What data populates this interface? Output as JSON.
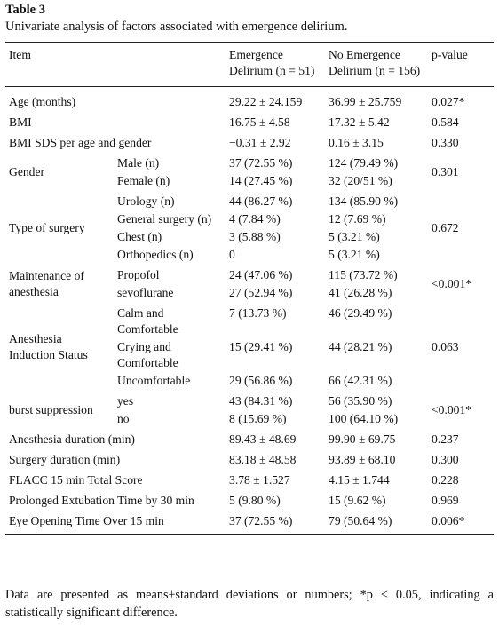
{
  "title": "Table 3",
  "caption": "Univariate analysis of factors associated with emergence delirium.",
  "table": {
    "header": [
      "Item",
      "Emergence Delirium (n = 51)",
      "No Emergence Delirium (n = 156)",
      "p-value"
    ],
    "rows": [
      {
        "item": "Age (months)",
        "ed": "29.22 ± 24.159",
        "no_ed": "36.99 ± 25.759",
        "p": "0.027*"
      },
      {
        "item": "BMI",
        "ed": "16.75 ± 4.58",
        "no_ed": "17.32 ± 5.42",
        "p": "0.584"
      },
      {
        "item": "BMI SDS per age and gender",
        "ed": "−0.31 ± 2.92",
        "no_ed": "0.16 ± 3.15",
        "p": "0.330"
      },
      {
        "item": "Gender",
        "rows": [
          {
            "label": "Male (n)",
            "ed": "37 (72.55 %)",
            "no_ed": "124 (79.49 %)"
          },
          {
            "label": "Female (n)",
            "ed": "14 (27.45 %)",
            "no_ed": "32 (20/51 %)"
          }
        ],
        "p": "0.301"
      },
      {
        "item": "Type of surgery",
        "rows": [
          {
            "label": "Urology (n)",
            "ed": "44 (86.27 %)",
            "no_ed": "134 (85.90 %)"
          },
          {
            "label": "General surgery (n)",
            "ed": "4 (7.84 %)",
            "no_ed": "12 (7.69 %)"
          },
          {
            "label": "Chest (n)",
            "ed": "3 (5.88 %)",
            "no_ed": "5 (3.21 %)"
          },
          {
            "label": "Orthopedics (n)",
            "ed": "0",
            "no_ed": "5 (3.21 %)"
          }
        ],
        "p": "0.672"
      },
      {
        "item": "Maintenance of anesthesia",
        "rows": [
          {
            "label": "Propofol",
            "ed": "24 (47.06 %)",
            "no_ed": "115 (73.72 %)"
          },
          {
            "label": "sevoflurane",
            "ed": "27 (52.94 %)",
            "no_ed": "41 (26.28 %)"
          }
        ],
        "p": "<0.001*"
      },
      {
        "item": "Anesthesia Induction Status",
        "rows": [
          {
            "label": "Calm and Comfortable",
            "ed": "7 (13.73 %)",
            "no_ed": "46 (29.49 %)"
          },
          {
            "label": "Crying and Comfortable",
            "ed": "15 (29.41 %)",
            "no_ed": "44 (28.21 %)"
          },
          {
            "label": "Uncomfortable",
            "ed": "29 (56.86 %)",
            "no_ed": "66 (42.31 %)"
          }
        ],
        "p": "0.063"
      },
      {
        "item": "burst suppression",
        "rows": [
          {
            "label": "yes",
            "ed": "43 (84.31 %)",
            "no_ed": "56 (35.90 %)"
          },
          {
            "label": "no",
            "ed": "8 (15.69 %)",
            "no_ed": "100 (64.10 %)"
          }
        ],
        "p": "<0.001*"
      },
      {
        "item": "Anesthesia duration (min)",
        "ed": "89.43 ± 48.69",
        "no_ed": "99.90 ± 69.75",
        "p": "0.237"
      },
      {
        "item": "Surgery duration (min)",
        "ed": "83.18 ± 48.58",
        "no_ed": "93.89 ± 68.10",
        "p": "0.300"
      },
      {
        "item": "FLACC 15 min Total Score",
        "ed": "3.78 ± 1.527",
        "no_ed": "4.15 ± 1.744",
        "p": "0.228"
      },
      {
        "item": "Prolonged Extubation Time by 30 min",
        "ed": "5 (9.80 %)",
        "no_ed": "15 (9.62 %)",
        "p": "0.969"
      },
      {
        "item": "Eye Opening Time Over 15 min",
        "ed": "37 (72.55 %)",
        "no_ed": "79 (50.64 %)",
        "p": "0.006*"
      }
    ]
  },
  "footnote": "Data are presented as means±standard deviations or numbers; *p < 0.05, indicating a statistically significant difference."
}
